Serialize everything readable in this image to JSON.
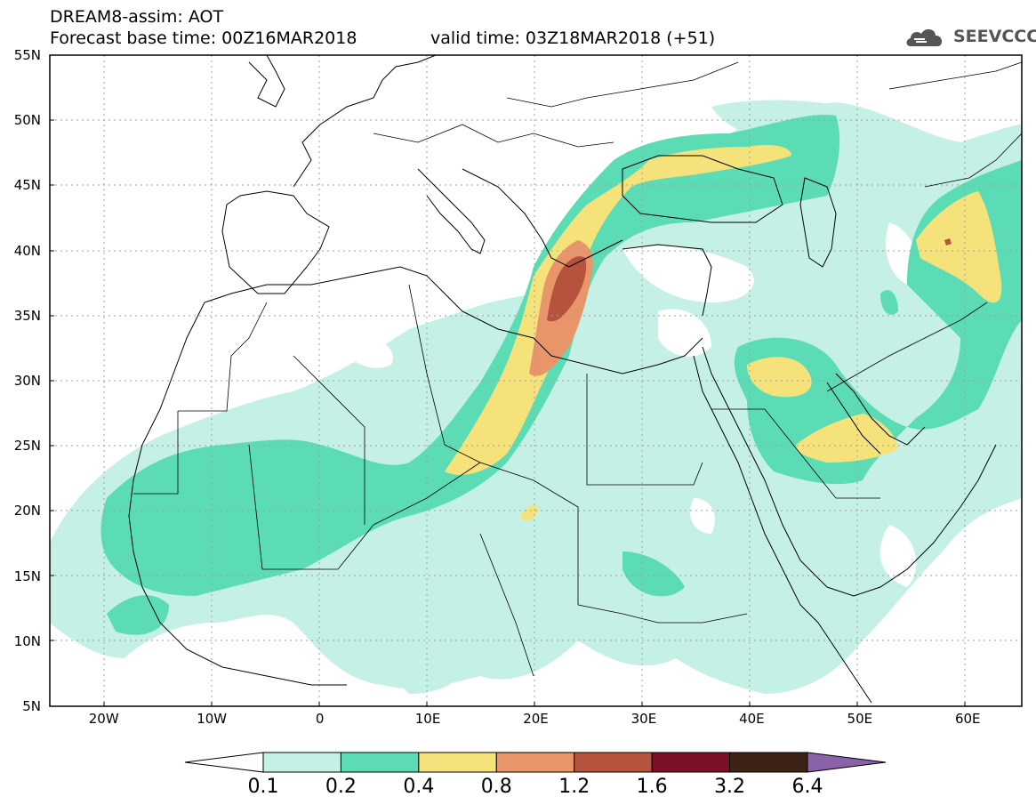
{
  "title": {
    "line1": "DREAM8-assim: AOT",
    "line2": "Forecast base time: 00Z16MAR2018",
    "valid": "valid time: 03Z18MAR2018 (+51)"
  },
  "logo": {
    "text": "SEEVCCC",
    "icon": "cloud-logo-icon"
  },
  "map": {
    "lat_ticks": [
      {
        "lat": 55,
        "label": "55N"
      },
      {
        "lat": 50,
        "label": "50N"
      },
      {
        "lat": 45,
        "label": "45N"
      },
      {
        "lat": 40,
        "label": "40N"
      },
      {
        "lat": 35,
        "label": "35N"
      },
      {
        "lat": 30,
        "label": "30N"
      },
      {
        "lat": 25,
        "label": "25N"
      },
      {
        "lat": 20,
        "label": "20N"
      },
      {
        "lat": 15,
        "label": "15N"
      },
      {
        "lat": 10,
        "label": "10N"
      },
      {
        "lat": 5,
        "label": "5N"
      }
    ],
    "lon_ticks": [
      {
        "lon": -20,
        "label": "20W"
      },
      {
        "lon": -10,
        "label": "10W"
      },
      {
        "lon": 0,
        "label": "0"
      },
      {
        "lon": 10,
        "label": "10E"
      },
      {
        "lon": 20,
        "label": "20E"
      },
      {
        "lon": 30,
        "label": "30E"
      },
      {
        "lon": 40,
        "label": "40E"
      },
      {
        "lon": 50,
        "label": "50E"
      },
      {
        "lon": 60,
        "label": "60E"
      }
    ],
    "lon_range": [
      -25,
      65
    ],
    "lat_range": [
      5,
      55
    ],
    "gridlines": true
  },
  "colorbar": {
    "labels": [
      "0.1",
      "0.2",
      "0.4",
      "0.8",
      "1.2",
      "1.6",
      "3.2",
      "6.4"
    ],
    "colors": [
      "#ffffff",
      "#c4f0e6",
      "#5bdcb4",
      "#f5e27a",
      "#e8956a",
      "#b5533f",
      "#7a0f28",
      "#3d2316",
      "#8a62a8"
    ]
  }
}
